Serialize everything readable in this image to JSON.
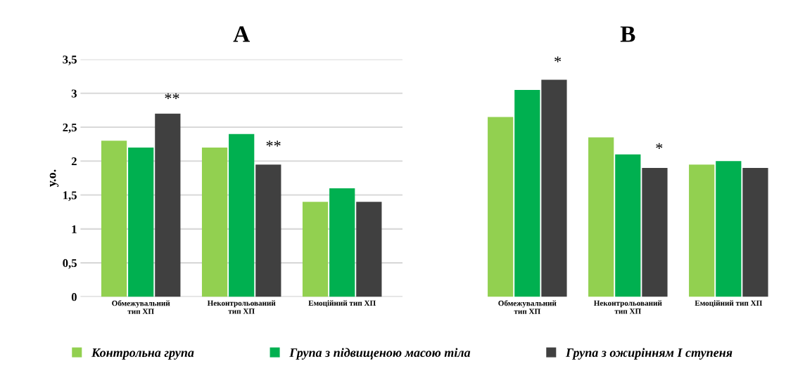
{
  "chart_data": [
    {
      "type": "bar",
      "title": "A",
      "ylabel": "у.о.",
      "categories": [
        "Обмежувальний\nтип ХП",
        "Неконтрольований\nтип ХП",
        "Емоційний тип ХП"
      ],
      "series": [
        {
          "name": "Контрольна група",
          "color": "#92d050",
          "values": [
            2.3,
            2.2,
            1.4
          ]
        },
        {
          "name": "Група з підвищеною масою тіла",
          "color": "#00b050",
          "values": [
            2.2,
            2.4,
            1.6
          ]
        },
        {
          "name": "Група з ожирінням I ступеня",
          "color": "#404040",
          "values": [
            2.7,
            1.95,
            1.4
          ]
        }
      ],
      "ylim": [
        0,
        3.5
      ],
      "yticks": [
        {
          "value": 0,
          "label": "0"
        },
        {
          "value": 0.5,
          "label": "0,5"
        },
        {
          "value": 1,
          "label": "1"
        },
        {
          "value": 1.5,
          "label": "1,5"
        },
        {
          "value": 2,
          "label": "2"
        },
        {
          "value": 2.5,
          "label": "2,5"
        },
        {
          "value": 3,
          "label": "3"
        },
        {
          "value": 3.5,
          "label": "3,5"
        }
      ],
      "grid": "y",
      "legend": "bottom",
      "annotations": [
        "**",
        "**"
      ]
    },
    {
      "type": "bar",
      "title": "B",
      "categories": [
        "Обмежувальний\nтип ХП",
        "Неконтрольований\nтип ХП",
        "Емоційний тип ХП"
      ],
      "series": [
        {
          "color": "#92d050",
          "values": [
            2.65,
            2.35,
            1.95
          ]
        },
        {
          "color": "#00b050",
          "values": [
            3.05,
            2.1,
            2.0
          ]
        },
        {
          "color": "#404040",
          "values": [
            3.2,
            1.9,
            1.9
          ]
        }
      ],
      "ylim": [
        0,
        3.5
      ],
      "tick_labels": "x",
      "grid": "y",
      "annotations": [
        "*",
        "*"
      ]
    }
  ]
}
